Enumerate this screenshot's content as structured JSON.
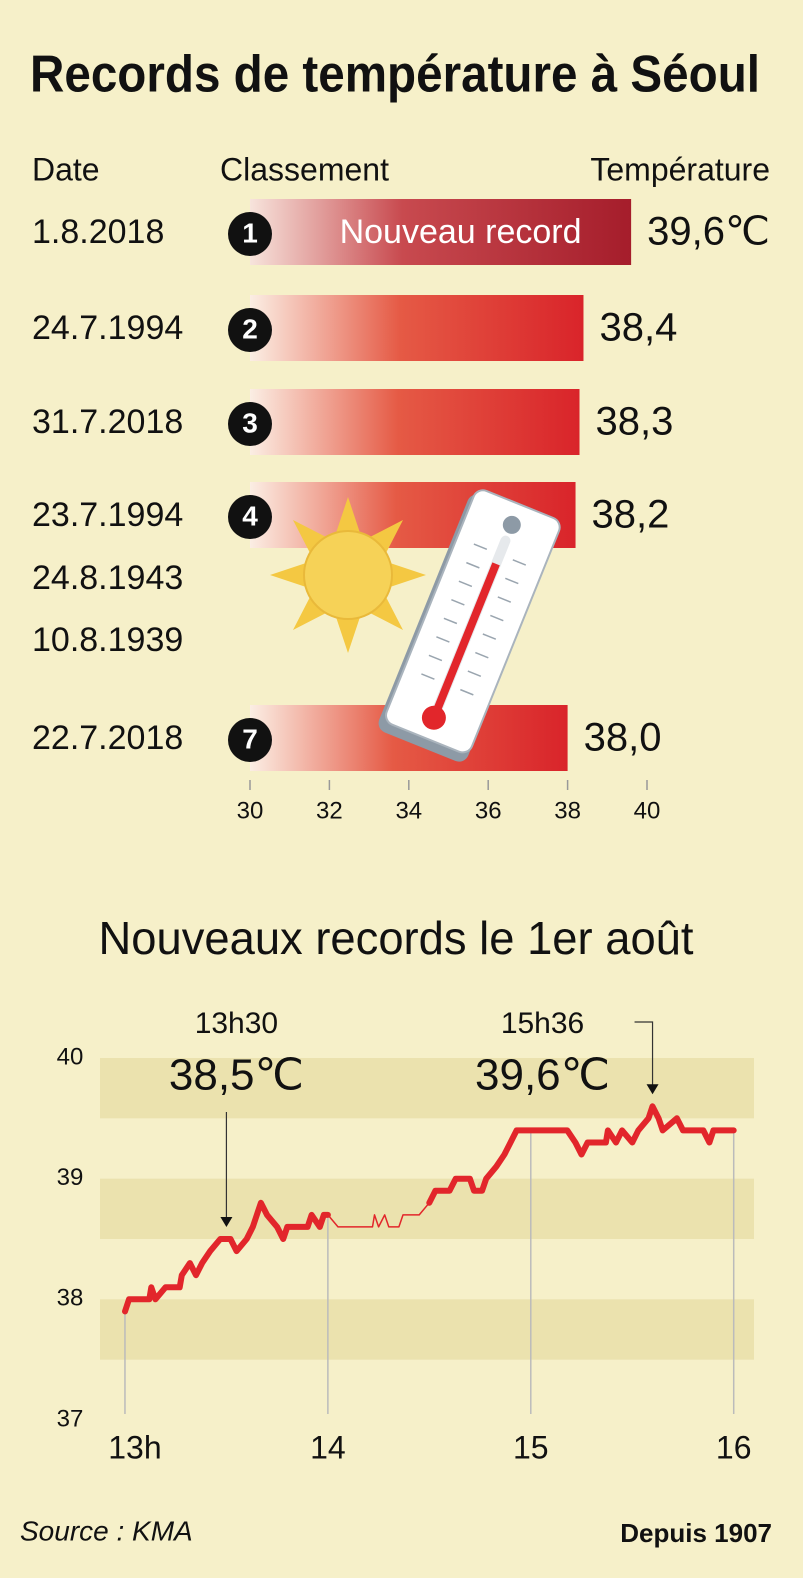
{
  "title": "Records de température à Séoul",
  "chart_data": [
    {
      "type": "hbar",
      "column_headers": [
        "Date",
        "Classement",
        "Température"
      ],
      "categories": [
        "1.8.2018",
        "24.7.1994",
        "31.7.2018",
        "23.7.1994",
        "24.8.1943",
        "10.8.1939",
        "22.7.2018"
      ],
      "ranks": [
        1,
        2,
        3,
        4,
        null,
        null,
        7
      ],
      "values": [
        39.6,
        38.4,
        38.3,
        38.2,
        null,
        null,
        38.0
      ],
      "value_labels": [
        "39,6℃",
        "38,4",
        "38,3",
        "38,2",
        null,
        null,
        "38,0"
      ],
      "bar_annotation": "Nouveau record",
      "color": "#d9242a",
      "highlight_color": "#a51d2b",
      "xlim": [
        30,
        40
      ],
      "xticks": [
        30,
        32,
        34,
        36,
        38,
        40
      ]
    },
    {
      "type": "line",
      "title": "Nouveaux records le 1er août",
      "series": [
        {
          "style": "thick",
          "color": "#e2262b",
          "x": [
            13.0,
            13.02,
            13.12,
            13.13,
            13.15,
            13.2,
            13.27,
            13.28,
            13.32,
            13.35,
            13.38,
            13.42,
            13.47,
            13.52,
            13.55,
            13.6,
            13.63,
            13.67,
            13.7,
            13.75,
            13.78,
            13.8,
            13.9,
            13.92,
            13.96,
            13.98,
            14.0
          ],
          "values": [
            37.9,
            38.0,
            38.0,
            38.1,
            38.0,
            38.1,
            38.1,
            38.2,
            38.3,
            38.2,
            38.3,
            38.4,
            38.5,
            38.5,
            38.4,
            38.5,
            38.6,
            38.8,
            38.7,
            38.6,
            38.5,
            38.6,
            38.6,
            38.7,
            38.6,
            38.7,
            38.7
          ]
        },
        {
          "style": "thin",
          "color": "#e2262b",
          "x": [
            14.0,
            14.05,
            14.22,
            14.23,
            14.25,
            14.28,
            14.3,
            14.35,
            14.37,
            14.45,
            14.5
          ],
          "values": [
            38.7,
            38.6,
            38.6,
            38.7,
            38.6,
            38.7,
            38.6,
            38.6,
            38.7,
            38.7,
            38.8
          ]
        },
        {
          "style": "thick",
          "color": "#e2262b",
          "x": [
            14.5,
            14.53,
            14.6,
            14.63,
            14.7,
            14.72,
            14.76,
            14.78,
            14.83,
            14.87,
            14.9,
            14.93,
            15.0,
            15.18,
            15.22,
            15.25,
            15.28,
            15.37,
            15.38,
            15.42,
            15.45,
            15.5,
            15.53,
            15.58,
            15.6,
            15.63,
            15.65,
            15.72,
            15.75,
            15.85,
            15.88,
            15.9,
            16.0
          ],
          "values": [
            38.8,
            38.9,
            38.9,
            39.0,
            39.0,
            38.9,
            38.9,
            39.0,
            39.1,
            39.2,
            39.3,
            39.4,
            39.4,
            39.4,
            39.3,
            39.2,
            39.3,
            39.3,
            39.4,
            39.3,
            39.4,
            39.3,
            39.4,
            39.5,
            39.6,
            39.5,
            39.4,
            39.5,
            39.4,
            39.4,
            39.3,
            39.4,
            39.4
          ]
        }
      ],
      "annotations": [
        {
          "x": 13.5,
          "y": 38.5,
          "time": "13h30",
          "label": "38,5℃"
        },
        {
          "x": 15.6,
          "y": 39.6,
          "time": "15h36",
          "label": "39,6℃"
        }
      ],
      "xlim": [
        12.877,
        16.1
      ],
      "xticks": [
        {
          "value": 13,
          "label": "13h"
        },
        14,
        15,
        16
      ],
      "ylim": [
        37,
        40
      ],
      "yticks": [
        37,
        38,
        39,
        40
      ],
      "bands": true
    }
  ],
  "footer": {
    "source": "Source : KMA",
    "note": "Depuis 1907"
  }
}
